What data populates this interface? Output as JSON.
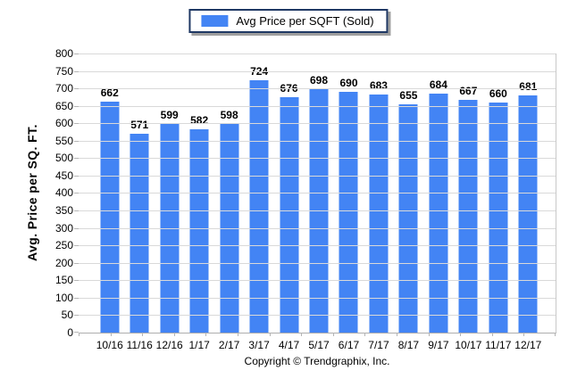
{
  "legend": {
    "label": "Avg Price per SQFT (Sold)"
  },
  "chart_data": {
    "type": "bar",
    "title": "",
    "categories": [
      "10/16",
      "11/16",
      "12/16",
      "1/17",
      "2/17",
      "3/17",
      "4/17",
      "5/17",
      "6/17",
      "7/17",
      "8/17",
      "9/17",
      "10/17",
      "11/17",
      "12/17"
    ],
    "values": [
      662,
      571,
      599,
      582,
      598,
      724,
      676,
      698,
      690,
      683,
      655,
      684,
      667,
      660,
      681
    ],
    "xlabel": "",
    "ylabel": "Avg. Price per SQ. FT.",
    "ylim": [
      0,
      800
    ],
    "ytick_step": 50,
    "grid": "horizontal",
    "legend_entries": [
      "Avg Price per SQFT (Sold)"
    ],
    "legend_position": "top-center",
    "bar_color": "#4384F4"
  },
  "colors": {
    "bar": "#4384F4",
    "gridline": "#D9D9D9",
    "axis_line": "#ADADAD",
    "tick": "#B5B5B5",
    "legend_border": "#1F3864",
    "legend_shadow": "#9E9E9E",
    "text": "#000000"
  },
  "footer": {
    "copyright": "Copyright © Trendgraphix, Inc."
  }
}
